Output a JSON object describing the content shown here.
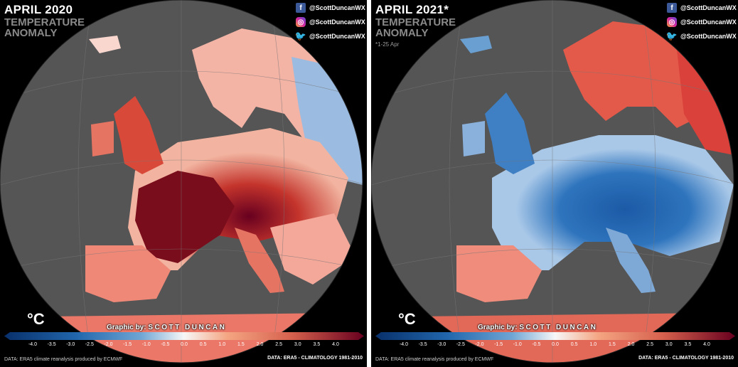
{
  "panels": [
    {
      "title": "APRIL 2020",
      "subtitle": "TEMPERATURE ANOMALY",
      "note": "",
      "social": {
        "facebook": "@ScottDuncanWX",
        "instagram": "@ScottDuncanWX",
        "twitter": "@ScottDuncanWX"
      },
      "unit": "°C",
      "credit_prefix": "Graphic by:",
      "credit_name": "SCOTT DUNCAN",
      "data_source": "DATA: ERA5 climate reanalysis produced by ECMWF",
      "data_climatology": "DATA: ERA5 - CLIMATOLOGY 1981-2010"
    },
    {
      "title": "APRIL 2021*",
      "subtitle": "TEMPERATURE ANOMALY",
      "note": "*1-25 Apr",
      "social": {
        "facebook": "@ScottDuncanWX",
        "instagram": "@ScottDuncanWX",
        "twitter": "@ScottDuncanWX"
      },
      "unit": "°C",
      "credit_prefix": "Graphic by:",
      "credit_name": "SCOTT DUNCAN",
      "data_source": "DATA: ERA5 climate reanalysis produced by ECMWF",
      "data_climatology": "DATA: ERA5 - CLIMATOLOGY 1981-2010"
    }
  ],
  "colorbar": {
    "ticks": [
      "-4.0",
      "-3.5",
      "-3.0",
      "-2.5",
      "-2.0",
      "-1.5",
      "-1.0",
      "-0.5",
      "0.0",
      "0.5",
      "1.0",
      "1.5",
      "2.0",
      "2.5",
      "3.0",
      "3.5",
      "4.0"
    ],
    "min": -4.0,
    "max": 4.0,
    "colors": [
      "#08306b",
      "#2166ac",
      "#6fa5d4",
      "#f7f7f7",
      "#f4a582",
      "#d6604d",
      "#67001f"
    ]
  },
  "map_colors": {
    "ocean": "#555555",
    "background": "#000000"
  }
}
